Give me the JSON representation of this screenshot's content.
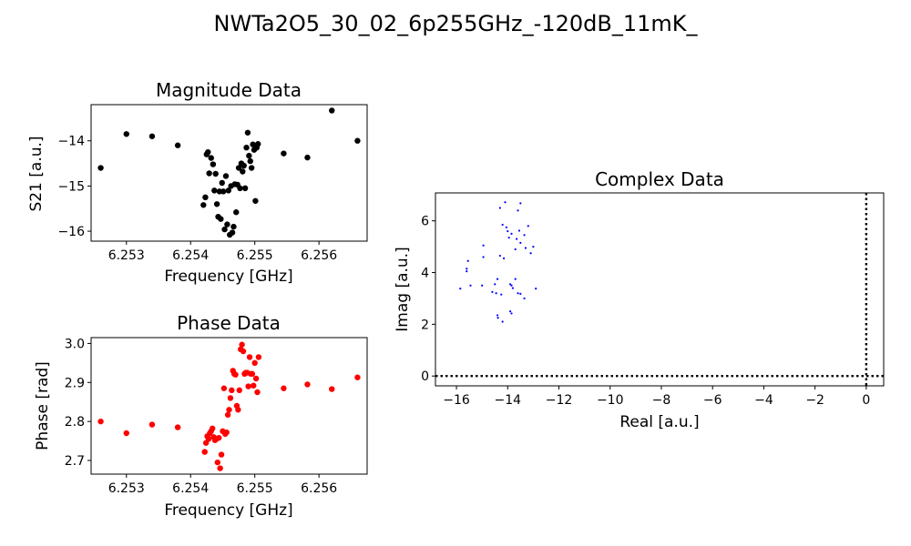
{
  "figure": {
    "title": "NWTa2O5_30_02_6p255GHz_-120dB_11mK_"
  },
  "chart_data": [
    {
      "id": "magnitude",
      "type": "scatter",
      "title": "Magnitude Data",
      "xlabel": "Frequency [GHz]",
      "ylabel": "S21 [a.u.]",
      "xlim": [
        6.25245,
        6.25675
      ],
      "ylim": [
        -16.22,
        -13.2
      ],
      "xticks": [
        6.253,
        6.254,
        6.255,
        6.256
      ],
      "yticks": [
        -14,
        -15,
        -16
      ],
      "xtick_labels": [
        "6.253",
        "6.254",
        "6.255",
        "6.256"
      ],
      "ytick_labels": [
        "−14",
        "−15",
        "−16"
      ],
      "color": "#000000",
      "series": [
        {
          "points": [
            [
              6.2526,
              -14.6
            ],
            [
              6.253,
              -13.85
            ],
            [
              6.2534,
              -13.9
            ],
            [
              6.2538,
              -14.1
            ],
            [
              6.2542,
              -15.42
            ],
            [
              6.25423,
              -15.25
            ],
            [
              6.25425,
              -14.3
            ],
            [
              6.25427,
              -14.25
            ],
            [
              6.25429,
              -14.72
            ],
            [
              6.25432,
              -14.38
            ],
            [
              6.25435,
              -14.52
            ],
            [
              6.25437,
              -15.1
            ],
            [
              6.25439,
              -14.73
            ],
            [
              6.25441,
              -15.4
            ],
            [
              6.25443,
              -15.68
            ],
            [
              6.25445,
              -15.12
            ],
            [
              6.25447,
              -15.73
            ],
            [
              6.25449,
              -14.93
            ],
            [
              6.25451,
              -15.12
            ],
            [
              6.25453,
              -15.96
            ],
            [
              6.25455,
              -14.78
            ],
            [
              6.25457,
              -15.85
            ],
            [
              6.25459,
              -15.1
            ],
            [
              6.25461,
              -16.08
            ],
            [
              6.25463,
              -15.0
            ],
            [
              6.25465,
              -16.03
            ],
            [
              6.25467,
              -15.9
            ],
            [
              6.25469,
              -14.96
            ],
            [
              6.25471,
              -15.58
            ],
            [
              6.25473,
              -14.97
            ],
            [
              6.25475,
              -14.6
            ],
            [
              6.25477,
              -15.05
            ],
            [
              6.25479,
              -14.5
            ],
            [
              6.25481,
              -14.68
            ],
            [
              6.25483,
              -14.55
            ],
            [
              6.25485,
              -15.05
            ],
            [
              6.25487,
              -14.15
            ],
            [
              6.25489,
              -13.82
            ],
            [
              6.25491,
              -14.33
            ],
            [
              6.25493,
              -14.45
            ],
            [
              6.25495,
              -14.6
            ],
            [
              6.25497,
              -14.08
            ],
            [
              6.25499,
              -14.2
            ],
            [
              6.25501,
              -15.33
            ],
            [
              6.25503,
              -14.15
            ],
            [
              6.25505,
              -14.07
            ],
            [
              6.25545,
              -14.28
            ],
            [
              6.25582,
              -14.37
            ],
            [
              6.2562,
              -13.33
            ],
            [
              6.2566,
              -14.0
            ]
          ]
        }
      ]
    },
    {
      "id": "phase",
      "type": "scatter",
      "title": "Phase Data",
      "xlabel": "Frequency [GHz]",
      "ylabel": "Phase [rad]",
      "xlim": [
        6.25245,
        6.25675
      ],
      "ylim": [
        2.665,
        3.015
      ],
      "xticks": [
        6.253,
        6.254,
        6.255,
        6.256
      ],
      "yticks": [
        2.7,
        2.8,
        2.9,
        3.0
      ],
      "xtick_labels": [
        "6.253",
        "6.254",
        "6.255",
        "6.256"
      ],
      "ytick_labels": [
        "2.7",
        "2.8",
        "2.9",
        "3.0"
      ],
      "color": "#ff0000",
      "series": [
        {
          "points": [
            [
              6.2526,
              2.8
            ],
            [
              6.253,
              2.77
            ],
            [
              6.2534,
              2.792
            ],
            [
              6.2538,
              2.785
            ],
            [
              6.25422,
              2.722
            ],
            [
              6.25424,
              2.745
            ],
            [
              6.25426,
              2.762
            ],
            [
              6.25428,
              2.755
            ],
            [
              6.2543,
              2.77
            ],
            [
              6.25432,
              2.775
            ],
            [
              6.25434,
              2.782
            ],
            [
              6.25436,
              2.76
            ],
            [
              6.25438,
              2.752
            ],
            [
              6.2544,
              2.755
            ],
            [
              6.25442,
              2.695
            ],
            [
              6.25444,
              2.758
            ],
            [
              6.25446,
              2.68
            ],
            [
              6.25448,
              2.715
            ],
            [
              6.2545,
              2.775
            ],
            [
              6.25452,
              2.885
            ],
            [
              6.25454,
              2.768
            ],
            [
              6.25456,
              2.772
            ],
            [
              6.25458,
              2.817
            ],
            [
              6.2546,
              2.83
            ],
            [
              6.25462,
              2.86
            ],
            [
              6.25464,
              2.88
            ],
            [
              6.25466,
              2.93
            ],
            [
              6.25468,
              2.922
            ],
            [
              6.2547,
              2.92
            ],
            [
              6.25472,
              2.84
            ],
            [
              6.25474,
              2.83
            ],
            [
              6.25476,
              2.88
            ],
            [
              6.25478,
              2.985
            ],
            [
              6.2548,
              2.997
            ],
            [
              6.25482,
              2.98
            ],
            [
              6.25484,
              2.922
            ],
            [
              6.25486,
              2.925
            ],
            [
              6.25488,
              2.925
            ],
            [
              6.2549,
              2.89
            ],
            [
              6.25492,
              2.965
            ],
            [
              6.25494,
              2.922
            ],
            [
              6.25496,
              2.922
            ],
            [
              6.25498,
              2.892
            ],
            [
              6.255,
              2.95
            ],
            [
              6.25502,
              2.91
            ],
            [
              6.25504,
              2.875
            ],
            [
              6.25506,
              2.965
            ],
            [
              6.25545,
              2.885
            ],
            [
              6.25582,
              2.895
            ],
            [
              6.2562,
              2.883
            ],
            [
              6.2566,
              2.913
            ]
          ]
        }
      ]
    },
    {
      "id": "complex",
      "type": "scatter",
      "title": "Complex Data",
      "xlabel": "Real [a.u.]",
      "ylabel": "Imag [a.u.]",
      "xlim": [
        -16.82,
        0.68
      ],
      "ylim": [
        -0.38,
        7.08
      ],
      "xticks": [
        -16,
        -14,
        -12,
        -10,
        -8,
        -6,
        -4,
        -2,
        0
      ],
      "yticks": [
        0,
        2,
        4,
        6
      ],
      "xtick_labels": [
        "−16",
        "−14",
        "−12",
        "−10",
        "−8",
        "−6",
        "−4",
        "−2",
        "0"
      ],
      "ytick_labels": [
        "0",
        "2",
        "4",
        "6"
      ],
      "color": "#0000ff",
      "series": [
        {
          "points": [
            [
              -14.1,
              6.72
            ],
            [
              -13.5,
              6.68
            ],
            [
              -14.3,
              6.5
            ],
            [
              -13.6,
              6.4
            ],
            [
              -14.2,
              5.85
            ],
            [
              -14.05,
              5.75
            ],
            [
              -13.2,
              5.8
            ],
            [
              -13.55,
              5.62
            ],
            [
              -14.0,
              5.6
            ],
            [
              -13.85,
              5.5
            ],
            [
              -13.95,
              5.35
            ],
            [
              -13.65,
              5.3
            ],
            [
              -13.35,
              5.45
            ],
            [
              -13.5,
              5.15
            ],
            [
              -14.95,
              5.05
            ],
            [
              -13.0,
              5.0
            ],
            [
              -13.3,
              4.95
            ],
            [
              -13.7,
              4.9
            ],
            [
              -13.1,
              4.75
            ],
            [
              -14.95,
              4.6
            ],
            [
              -14.3,
              4.65
            ],
            [
              -14.15,
              4.55
            ],
            [
              -15.55,
              4.45
            ],
            [
              -15.6,
              4.15
            ],
            [
              -15.6,
              4.05
            ],
            [
              -14.4,
              3.75
            ],
            [
              -13.7,
              3.75
            ],
            [
              -15.0,
              3.5
            ],
            [
              -13.9,
              3.55
            ],
            [
              -13.85,
              3.5
            ],
            [
              -14.5,
              3.55
            ],
            [
              -15.85,
              3.38
            ],
            [
              -13.8,
              3.4
            ],
            [
              -12.9,
              3.38
            ],
            [
              -14.6,
              3.25
            ],
            [
              -14.45,
              3.2
            ],
            [
              -14.25,
              3.15
            ],
            [
              -13.6,
              3.2
            ],
            [
              -13.5,
              3.18
            ],
            [
              -13.35,
              3.0
            ],
            [
              -14.4,
              2.35
            ],
            [
              -14.38,
              2.25
            ],
            [
              -13.9,
              2.5
            ],
            [
              -13.85,
              2.42
            ],
            [
              -14.2,
              2.1
            ],
            [
              -15.45,
              3.5
            ]
          ]
        }
      ],
      "reference_lines": {
        "hline": 0,
        "vline": 0,
        "style": "dotted"
      }
    }
  ]
}
